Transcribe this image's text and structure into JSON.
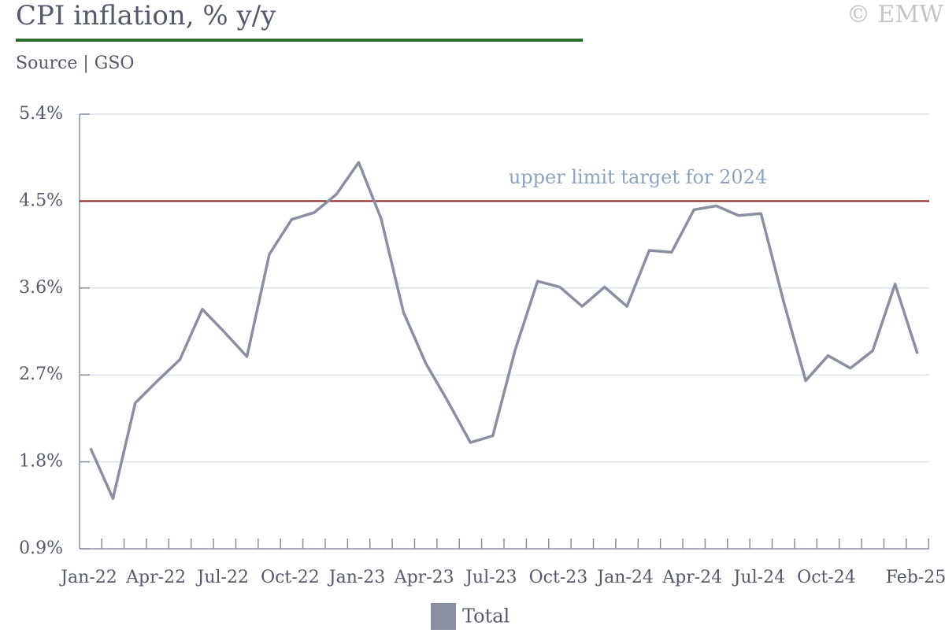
{
  "chart_data": {
    "type": "line",
    "title": "CPI inflation, % y/y",
    "subtitle": "Source | GSO",
    "copyright": "© EMW",
    "categories": [
      "Jan-22",
      null,
      null,
      "Apr-22",
      null,
      null,
      "Jul-22",
      null,
      null,
      "Oct-22",
      null,
      null,
      "Jan-23",
      null,
      null,
      "Apr-23",
      null,
      null,
      "Jul-23",
      null,
      null,
      "Oct-23",
      null,
      null,
      "Jan-24",
      null,
      null,
      "Apr-24",
      null,
      null,
      "Jul-24",
      null,
      null,
      "Oct-24",
      null,
      null,
      null,
      "Feb-25"
    ],
    "series": [
      {
        "name": "Total",
        "color": "#8a8fa0",
        "values": [
          1.94,
          1.42,
          2.41,
          2.64,
          2.86,
          3.38,
          3.14,
          2.89,
          3.95,
          4.31,
          4.38,
          4.57,
          4.9,
          4.32,
          3.35,
          2.82,
          2.42,
          2.0,
          2.07,
          2.96,
          3.67,
          3.61,
          3.41,
          3.61,
          3.41,
          3.99,
          3.97,
          4.41,
          4.45,
          4.35,
          4.37,
          3.47,
          2.64,
          2.9,
          2.77,
          2.95,
          3.64,
          2.92
        ]
      }
    ],
    "reference_line": {
      "value": 4.5,
      "color": "#8b1a1a",
      "label": "upper limit target for 2024"
    },
    "ylim": [
      0.9,
      5.4
    ],
    "yticks": [
      {
        "value": 0.9,
        "label": "0.9%"
      },
      {
        "value": 1.8,
        "label": "1.8%"
      },
      {
        "value": 2.7,
        "label": "2.7%"
      },
      {
        "value": 3.6,
        "label": "3.6%"
      },
      {
        "value": 4.5,
        "label": "4.5%"
      },
      {
        "value": 5.4,
        "label": "5.4%"
      }
    ],
    "grid": true
  }
}
